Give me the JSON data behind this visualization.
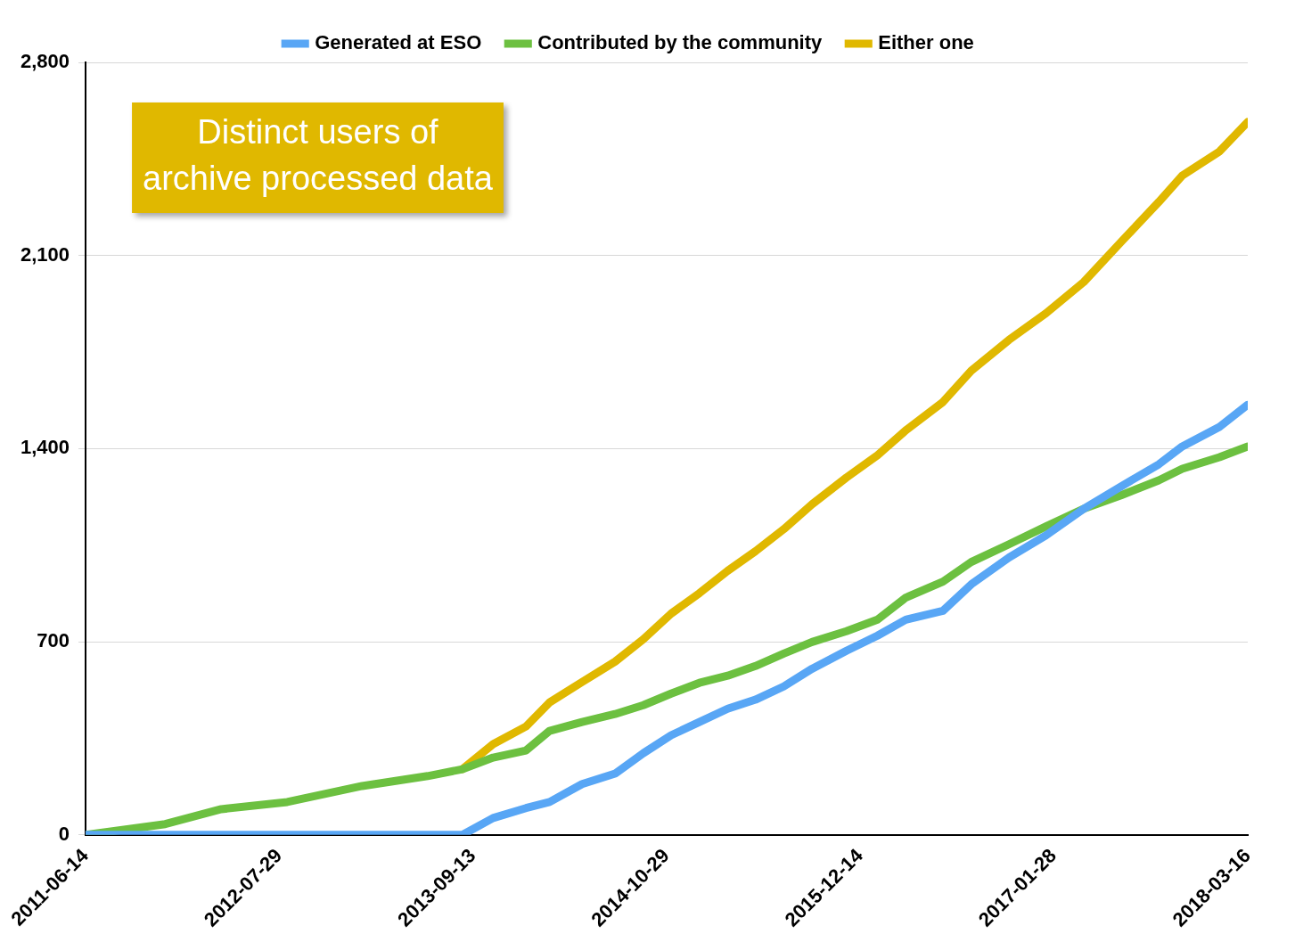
{
  "chart_data": {
    "type": "line",
    "annotations": [
      "Distinct users of archive processed data"
    ],
    "x": [
      "2011-06-14",
      "2011-11-30",
      "2012-03-28",
      "2012-08-15",
      "2013-01-21",
      "2013-06-09",
      "2013-08-22",
      "2013-10-26",
      "2014-01-04",
      "2014-02-23",
      "2014-05-03",
      "2014-07-12",
      "2014-09-10",
      "2014-11-08",
      "2015-01-07",
      "2015-03-08",
      "2015-05-06",
      "2015-07-05",
      "2015-09-03",
      "2015-11-15",
      "2016-01-20",
      "2016-03-20",
      "2016-06-07",
      "2016-08-06",
      "2016-10-25",
      "2017-01-12",
      "2017-04-02",
      "2017-06-20",
      "2017-09-08",
      "2017-10-28",
      "2018-01-15",
      "2018-03-16"
    ],
    "series": [
      {
        "name": "Generated at ESO",
        "color": "#58a6f5",
        "values": [
          0,
          0,
          0,
          0,
          0,
          0,
          0,
          61,
          97,
          119,
          184,
          222,
          296,
          361,
          409,
          457,
          490,
          538,
          602,
          667,
          722,
          780,
          812,
          908,
          1005,
          1086,
          1182,
          1263,
          1343,
          1408,
          1479,
          1559
        ]
      },
      {
        "name": "Contributed by the community",
        "color": "#6cc040",
        "values": [
          0,
          39,
          93,
          119,
          177,
          213,
          238,
          280,
          306,
          377,
          409,
          438,
          470,
          512,
          551,
          577,
          612,
          657,
          699,
          738,
          780,
          860,
          918,
          989,
          1053,
          1118,
          1182,
          1231,
          1285,
          1327,
          1369,
          1408
        ]
      },
      {
        "name": "Either one",
        "color": "#e0b800",
        "values": [
          null,
          null,
          null,
          null,
          null,
          null,
          238,
          329,
          393,
          480,
          554,
          628,
          709,
          802,
          876,
          957,
          1028,
          1108,
          1198,
          1295,
          1376,
          1466,
          1569,
          1682,
          1794,
          1891,
          2004,
          2149,
          2294,
          2390,
          2477,
          2584
        ]
      }
    ],
    "xlim": [
      "2011-06-14",
      "2018-03-16"
    ],
    "xticks": [
      "2011-06-14",
      "2012-07-29",
      "2013-09-13",
      "2014-10-29",
      "2015-12-14",
      "2017-01-28",
      "2018-03-16"
    ],
    "ylim": [
      0,
      2800
    ],
    "yticks": [
      {
        "value": 0,
        "label": "0"
      },
      {
        "value": 700,
        "label": "700"
      },
      {
        "value": 1400,
        "label": "1,400"
      },
      {
        "value": 2100,
        "label": "2,100"
      },
      {
        "value": 2800,
        "label": "2,800"
      }
    ],
    "grid": "y",
    "legend": "top",
    "marker": "none",
    "line_style": "solid"
  }
}
